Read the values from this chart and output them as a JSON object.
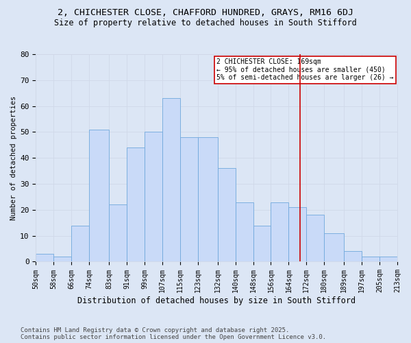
{
  "title": "2, CHICHESTER CLOSE, CHAFFORD HUNDRED, GRAYS, RM16 6DJ",
  "subtitle": "Size of property relative to detached houses in South Stifford",
  "xlabel": "Distribution of detached houses by size in South Stifford",
  "ylabel": "Number of detached properties",
  "footer1": "Contains HM Land Registry data © Crown copyright and database right 2025.",
  "footer2": "Contains public sector information licensed under the Open Government Licence v3.0.",
  "bins": [
    50,
    58,
    66,
    74,
    83,
    91,
    99,
    107,
    115,
    123,
    132,
    140,
    148,
    156,
    164,
    172,
    180,
    189,
    197,
    205,
    213
  ],
  "bar_heights": [
    3,
    2,
    14,
    51,
    22,
    44,
    50,
    63,
    48,
    48,
    36,
    23,
    14,
    23,
    21,
    18,
    11,
    4,
    2,
    2
  ],
  "bar_color": "#c9daf8",
  "bar_edge_color": "#6fa8dc",
  "grid_color": "#d0d8e8",
  "bg_color": "#dce6f5",
  "vline_x": 169,
  "vline_color": "#cc0000",
  "annotation_text": "2 CHICHESTER CLOSE: 169sqm\n← 95% of detached houses are smaller (450)\n5% of semi-detached houses are larger (26) →",
  "annotation_box_color": "#cc0000",
  "ylim": [
    0,
    80
  ],
  "yticks": [
    0,
    10,
    20,
    30,
    40,
    50,
    60,
    70,
    80
  ],
  "tick_labels": [
    "50sqm",
    "58sqm",
    "66sqm",
    "74sqm",
    "83sqm",
    "91sqm",
    "99sqm",
    "107sqm",
    "115sqm",
    "123sqm",
    "132sqm",
    "140sqm",
    "148sqm",
    "156sqm",
    "164sqm",
    "172sqm",
    "180sqm",
    "189sqm",
    "197sqm",
    "205sqm",
    "213sqm"
  ],
  "title_fontsize": 9.5,
  "subtitle_fontsize": 8.5,
  "xlabel_fontsize": 8.5,
  "ylabel_fontsize": 7.5,
  "tick_fontsize": 7,
  "annotation_fontsize": 7,
  "footer_fontsize": 6.5
}
